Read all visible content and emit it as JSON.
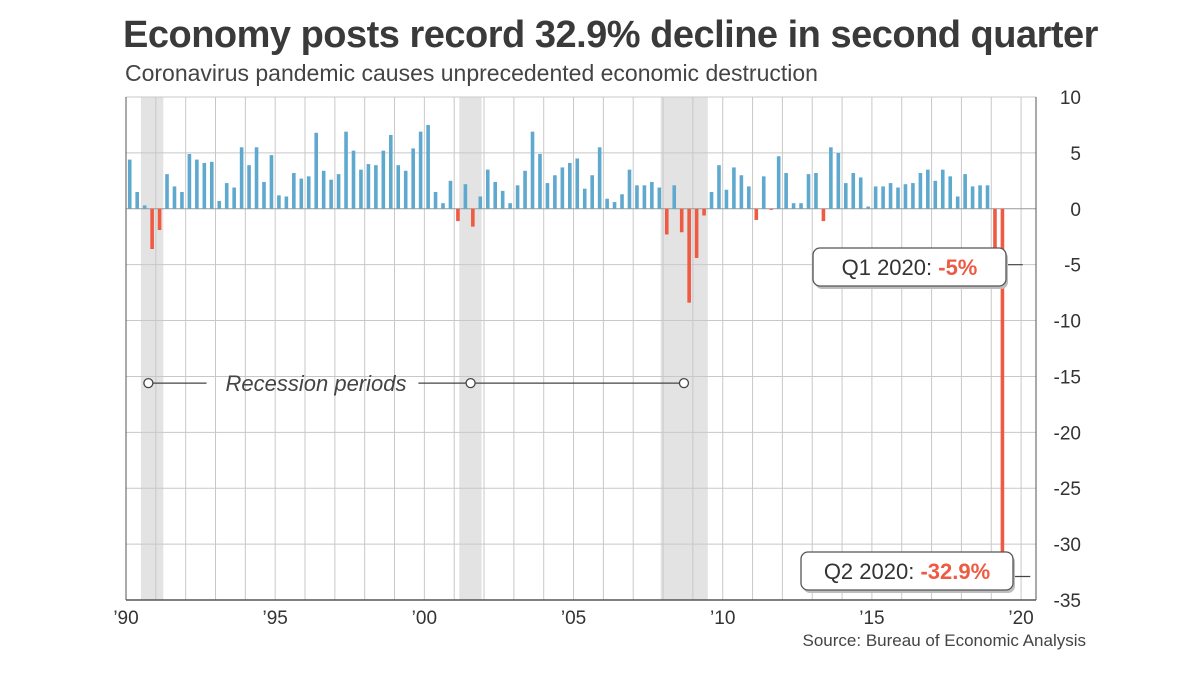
{
  "chart_data": {
    "type": "bar",
    "title": "Economy posts record 32.9% decline in second quarter",
    "subtitle": "Coronavirus pandemic causes unprecedented economic destruction",
    "source": "Source: Bureau of Economic Analysis",
    "xlim": [
      1990,
      2020.5
    ],
    "ylim": [
      -35,
      10
    ],
    "y_ticks": [
      10,
      5,
      0,
      -5,
      -10,
      -15,
      -20,
      -25,
      -30,
      -35
    ],
    "x_tick_labels": [
      {
        "year": 1990,
        "label": "’90"
      },
      {
        "year": 1995,
        "label": "’95"
      },
      {
        "year": 2000,
        "label": "’00"
      },
      {
        "year": 2005,
        "label": "’05"
      },
      {
        "year": 2010,
        "label": "’10"
      },
      {
        "year": 2015,
        "label": "’15"
      },
      {
        "year": 2020,
        "label": "’20"
      }
    ],
    "grid": true,
    "colors": {
      "positive": "#5fa9cf",
      "negative": "#ef5a43",
      "recession": "#e3e3e3",
      "grid": "#c8c8c8"
    },
    "series": [
      {
        "start": "1990 Q1",
        "frequency": "quarterly",
        "values": [
          4.4,
          1.5,
          0.3,
          -3.6,
          -1.9,
          3.1,
          2.0,
          1.5,
          4.9,
          4.4,
          4.1,
          4.2,
          0.7,
          2.3,
          1.9,
          5.5,
          3.9,
          5.5,
          2.4,
          4.8,
          1.2,
          1.1,
          3.2,
          2.7,
          2.9,
          6.8,
          3.4,
          2.6,
          3.1,
          6.9,
          5.2,
          3.5,
          4.0,
          3.9,
          5.2,
          6.6,
          3.9,
          3.4,
          5.4,
          6.9,
          7.5,
          1.5,
          0.5,
          2.5,
          -1.1,
          2.2,
          -1.6,
          1.1,
          3.5,
          2.4,
          1.6,
          0.5,
          2.1,
          3.4,
          6.9,
          4.9,
          2.3,
          3.0,
          3.7,
          4.1,
          4.5,
          1.8,
          3.0,
          5.5,
          0.9,
          0.6,
          1.3,
          3.5,
          2.1,
          2.1,
          2.4,
          1.9,
          -2.3,
          2.1,
          -2.1,
          -8.4,
          -4.4,
          -0.6,
          1.5,
          3.9,
          1.7,
          3.7,
          3.0,
          2.0,
          -1.0,
          2.9,
          -0.1,
          4.7,
          3.2,
          0.5,
          0.5,
          3.1,
          3.2,
          -1.1,
          5.5,
          5.0,
          2.3,
          3.2,
          2.8,
          0.2,
          2.0,
          2.0,
          2.3,
          1.9,
          2.2,
          2.3,
          3.2,
          3.5,
          2.5,
          3.5,
          2.9,
          1.1,
          3.1,
          2.0,
          2.1,
          2.1,
          -5.0,
          -32.9
        ]
      }
    ],
    "recessions": [
      {
        "start": 1990.5,
        "end": 1991.25
      },
      {
        "start": 2001.17,
        "end": 2001.92
      },
      {
        "start": 2007.92,
        "end": 2009.5
      }
    ],
    "annotations": {
      "recession_label": "Recession periods",
      "q1_prefix": "Q1 2020:",
      "q1_value": "-5%",
      "q2_prefix": "Q2 2020:",
      "q2_value": "-32.9%"
    }
  }
}
